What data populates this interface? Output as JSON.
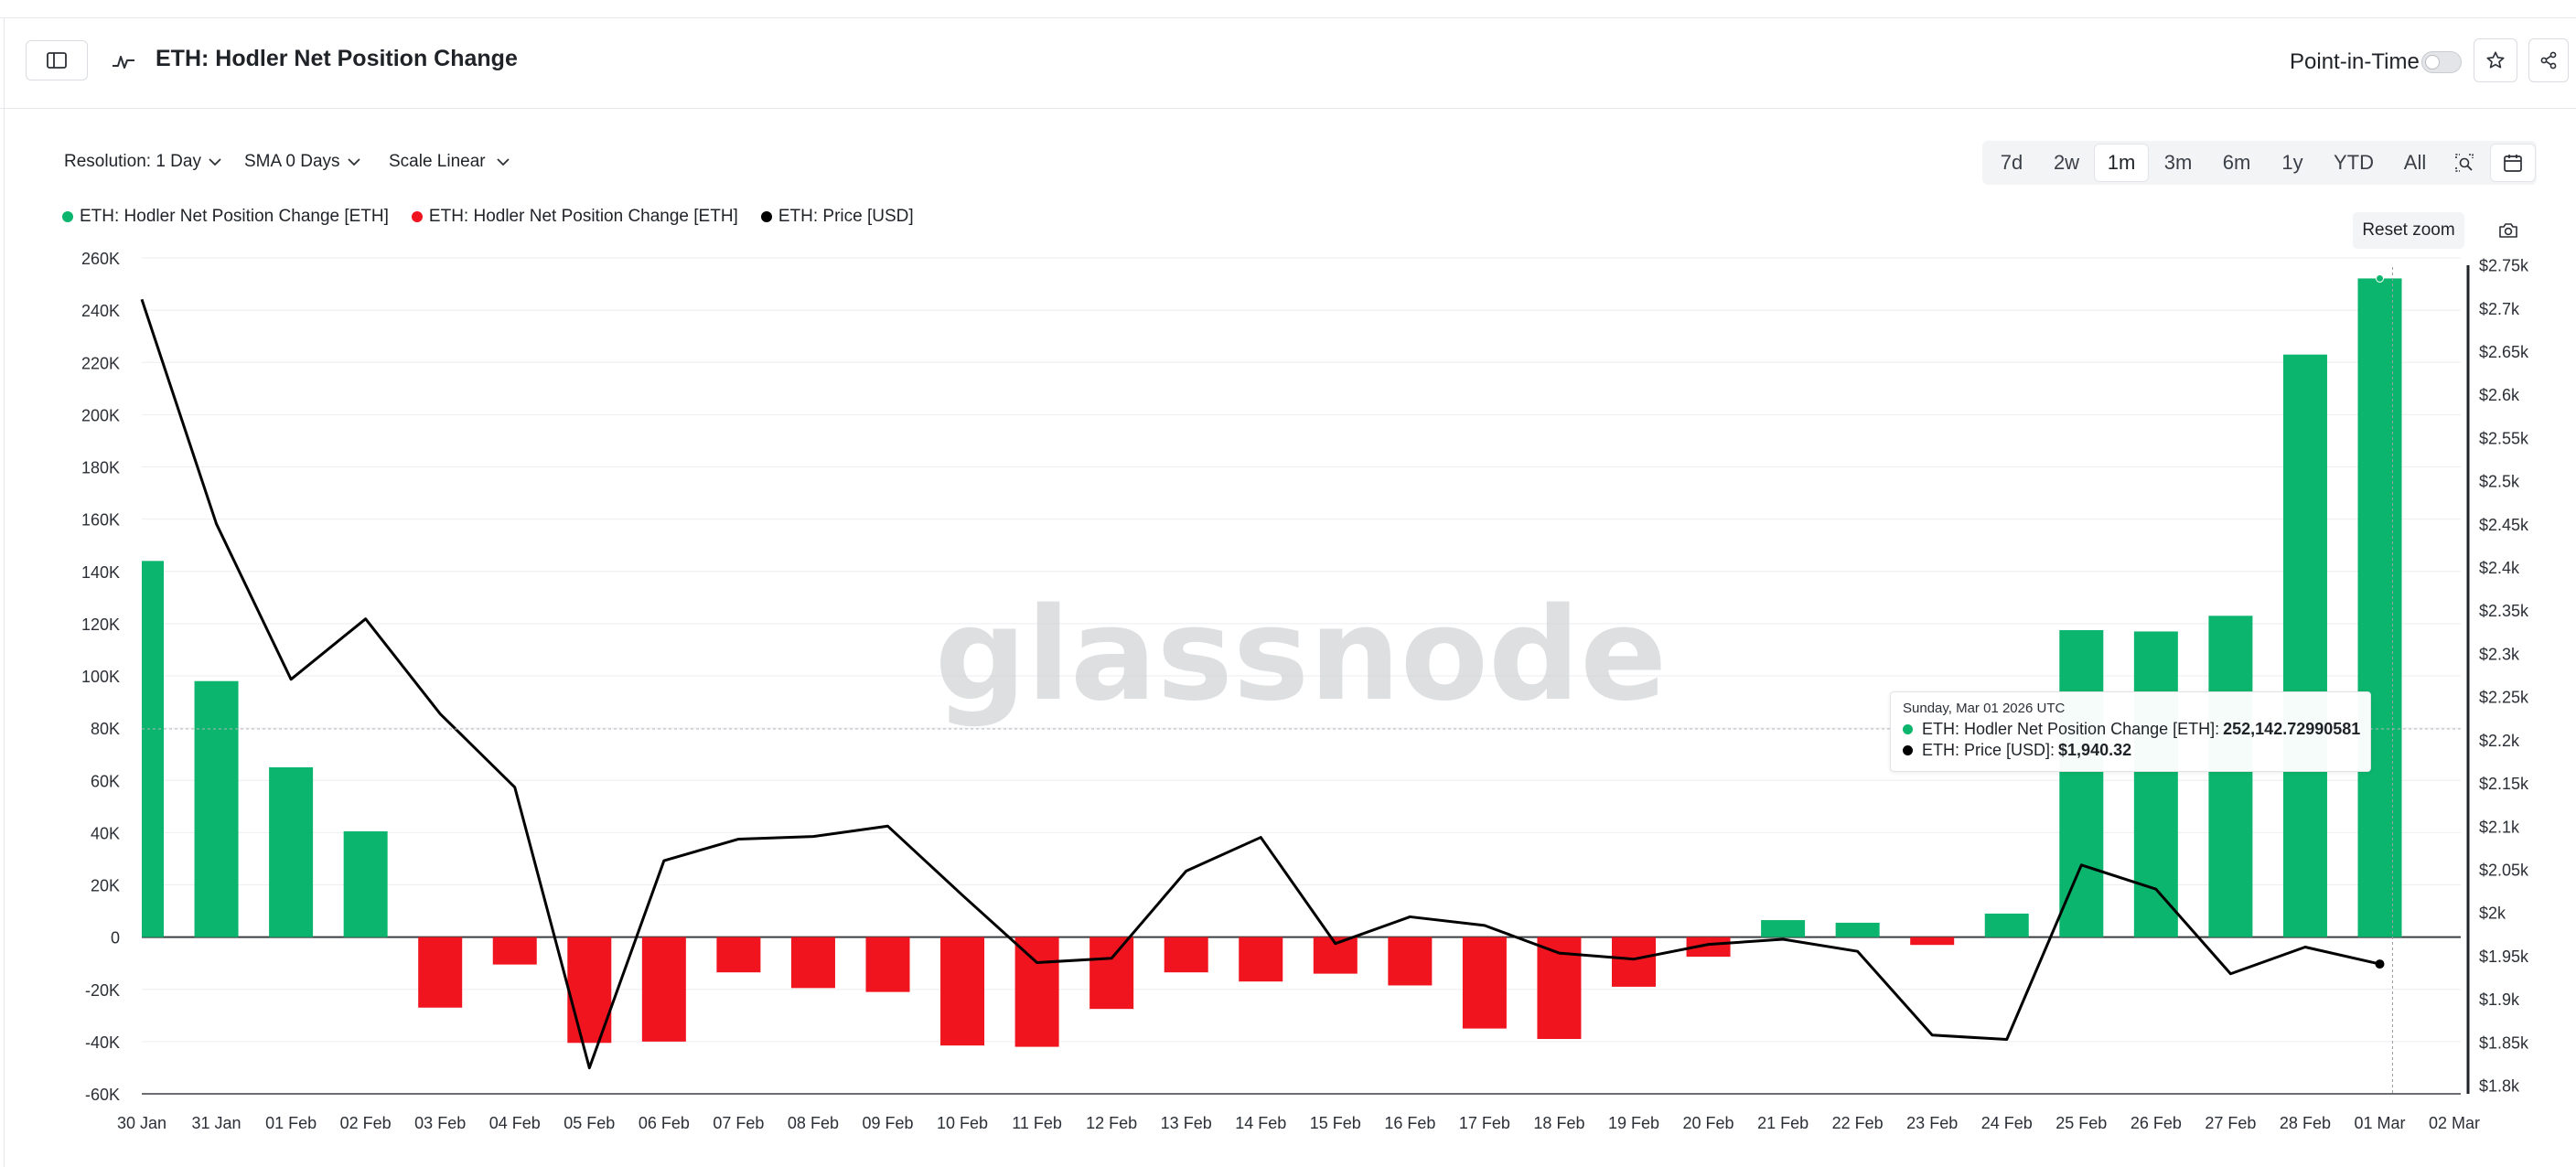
{
  "header": {
    "title": "ETH: Hodler Net Position Change",
    "point_in_time_label": "Point-in-Time"
  },
  "controls": {
    "resolution": "Resolution: 1 Day",
    "sma": "SMA 0 Days",
    "scale": "Scale Linear"
  },
  "ranges": [
    "7d",
    "2w",
    "1m",
    "3m",
    "6m",
    "1y",
    "YTD",
    "All"
  ],
  "active_range": "1m",
  "legend": [
    {
      "label": "ETH: Hodler Net Position Change [ETH]",
      "color": "#0bb56d"
    },
    {
      "label": "ETH: Hodler Net Position Change [ETH]",
      "color": "#f0141e"
    },
    {
      "label": "ETH: Price [USD]",
      "color": "#000000"
    }
  ],
  "reset_zoom": "Reset zoom",
  "watermark": "glassnode",
  "tooltip": {
    "date": "Sunday, Mar 01 2026 UTC",
    "row1_label": "ETH: Hodler Net Position Change [ETH]:",
    "row1_value": "252,142.72990581",
    "row2_label": "ETH: Price [USD]:",
    "row2_value": "$1,940.32"
  },
  "chart_data": {
    "type": "bar",
    "categories": [
      "30 Jan",
      "31 Jan",
      "01 Feb",
      "02 Feb",
      "03 Feb",
      "04 Feb",
      "05 Feb",
      "06 Feb",
      "07 Feb",
      "08 Feb",
      "09 Feb",
      "10 Feb",
      "11 Feb",
      "12 Feb",
      "13 Feb",
      "14 Feb",
      "15 Feb",
      "16 Feb",
      "17 Feb",
      "18 Feb",
      "19 Feb",
      "20 Feb",
      "21 Feb",
      "22 Feb",
      "23 Feb",
      "24 Feb",
      "25 Feb",
      "26 Feb",
      "27 Feb",
      "28 Feb",
      "01 Mar",
      "02 Mar"
    ],
    "series": [
      {
        "name": "ETH: Hodler Net Position Change [ETH]",
        "axis": "left",
        "values": [
          144000,
          98000,
          65000,
          40500,
          -27000,
          -10500,
          -40500,
          -40000,
          -13500,
          -19500,
          -21000,
          -41500,
          -42000,
          -27500,
          -13500,
          -17000,
          -14000,
          -18500,
          -35000,
          -39000,
          -19000,
          -7500,
          6500,
          5500,
          -3000,
          9000,
          117500,
          117000,
          123000,
          223000,
          252142.72990581,
          null
        ],
        "positive_color": "#0bb56d",
        "negative_color": "#f0141e"
      },
      {
        "name": "ETH: Price [USD]",
        "axis": "right",
        "type": "line",
        "color": "#000000",
        "values": [
          2710,
          2450,
          2270,
          2340,
          2230,
          2145,
          1820,
          2060,
          2085,
          2088,
          2100,
          2020,
          1942,
          1947,
          2048,
          2087,
          1964,
          1995,
          1985,
          1953,
          1946,
          1963,
          1969,
          1955,
          1858,
          1853,
          2055,
          2027,
          1929,
          1960,
          1940.32,
          null
        ]
      }
    ],
    "y_left": {
      "ticks": [
        -60000,
        -40000,
        -20000,
        0,
        20000,
        40000,
        60000,
        80000,
        100000,
        120000,
        140000,
        160000,
        180000,
        200000,
        220000,
        240000,
        260000
      ],
      "labels": [
        "-60K",
        "-40K",
        "-20K",
        "0",
        "20K",
        "40K",
        "60K",
        "80K",
        "100K",
        "120K",
        "140K",
        "160K",
        "180K",
        "200K",
        "220K",
        "240K",
        "260K"
      ],
      "range": [
        -60000,
        260000
      ]
    },
    "y_right": {
      "ticks": [
        1800,
        1850,
        1900,
        1950,
        2000,
        2050,
        2100,
        2150,
        2200,
        2250,
        2300,
        2350,
        2400,
        2450,
        2500,
        2550,
        2600,
        2650,
        2700,
        2750
      ],
      "labels": [
        "$1.8k",
        "$1.85k",
        "$1.9k",
        "$1.95k",
        "$2k",
        "$2.05k",
        "$2.1k",
        "$2.15k",
        "$2.2k",
        "$2.25k",
        "$2.3k",
        "$2.35k",
        "$2.4k",
        "$2.45k",
        "$2.5k",
        "$2.55k",
        "$2.6k",
        "$2.65k",
        "$2.7k",
        "$2.75k"
      ],
      "range": [
        1790,
        2758
      ]
    },
    "grid": true,
    "legend_position": "top-left"
  }
}
